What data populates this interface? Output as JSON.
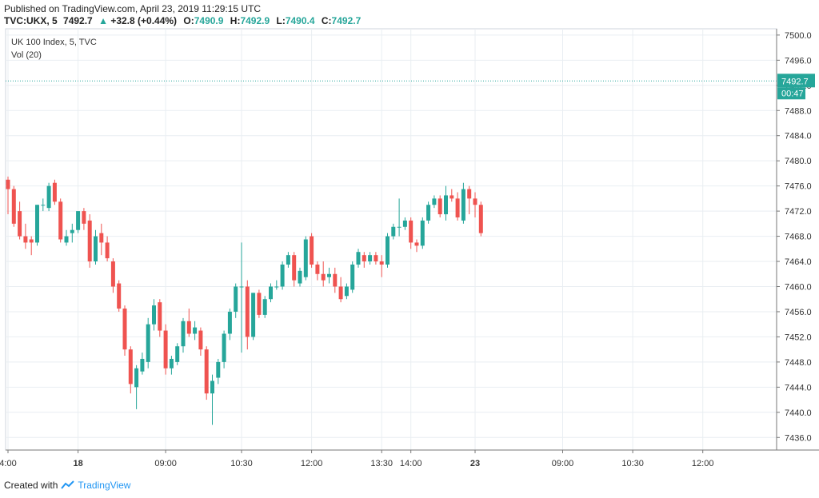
{
  "header": {
    "published": "Published on TradingView.com, April 23, 2019 11:29:15 UTC",
    "symbol": "TVC:UKX, 5",
    "last": "7492.7",
    "change": "+32.8 (+0.44%)",
    "o_label": "O:",
    "o_value": "7490.9",
    "h_label": "H:",
    "h_value": "7492.9",
    "l_label": "L:",
    "l_value": "7490.4",
    "c_label": "C:",
    "c_value": "7492.7"
  },
  "footer": {
    "created_with": "Created with",
    "brand": "TradingView"
  },
  "colors": {
    "up": "#26a69a",
    "down": "#ef5350",
    "grid": "#e9eef2",
    "axis": "#777777",
    "price_line": "#26a69a"
  },
  "chart_data": {
    "type": "candlestick",
    "title": "UK 100 Index, 5, TVC",
    "indicator": "Vol (20)",
    "ylim": [
      7434,
      7501
    ],
    "y_ticks": [
      "7500.0",
      "7496.0",
      "7492.0",
      "7488.0",
      "7484.0",
      "7480.0",
      "7476.0",
      "7472.0",
      "7468.0",
      "7464.0",
      "7460.0",
      "7456.0",
      "7452.0",
      "7448.0",
      "7444.0",
      "7440.0",
      "7436.0"
    ],
    "x_tick_labels": [
      {
        "label": "4:00",
        "bar": 0
      },
      {
        "label": "18",
        "bar": 12
      },
      {
        "label": "09:00",
        "bar": 27
      },
      {
        "label": "10:30",
        "bar": 40
      },
      {
        "label": "12:00",
        "bar": 52
      },
      {
        "label": "13:30",
        "bar": 64
      },
      {
        "label": "14:00",
        "bar": 69
      },
      {
        "label": "23",
        "bar": 80
      },
      {
        "label": "09:00",
        "bar": 95
      },
      {
        "label": "10:30",
        "bar": 107
      },
      {
        "label": "12:00",
        "bar": 119
      }
    ],
    "last_price_label": "7492.7",
    "countdown_label": "00:47",
    "last_price": 7492.7,
    "candles": [
      [
        7477.0,
        7477.5,
        7471.5,
        7475.5
      ],
      [
        7475.5,
        7476.0,
        7469.5,
        7470.0
      ],
      [
        7472.0,
        7473.5,
        7467.5,
        7468.0
      ],
      [
        7468.0,
        7470.0,
        7466.0,
        7467.0
      ],
      [
        7467.5,
        7468.0,
        7465.0,
        7467.0
      ],
      [
        7467.0,
        7473.0,
        7466.5,
        7473.0
      ],
      [
        7473.0,
        7474.0,
        7472.0,
        7473.0
      ],
      [
        7472.5,
        7476.5,
        7472.0,
        7476.0
      ],
      [
        7476.5,
        7477.0,
        7473.0,
        7473.5
      ],
      [
        7473.5,
        7474.0,
        7467.0,
        7467.5
      ],
      [
        7467.0,
        7469.0,
        7466.5,
        7468.0
      ],
      [
        7468.5,
        7470.0,
        7467.0,
        7469.0
      ],
      [
        7469.0,
        7472.0,
        7468.5,
        7472.0
      ],
      [
        7472.0,
        7472.5,
        7469.0,
        7470.0
      ],
      [
        7470.5,
        7471.5,
        7463.0,
        7464.0
      ],
      [
        7464.0,
        7469.0,
        7463.5,
        7468.0
      ],
      [
        7468.5,
        7470.0,
        7465.0,
        7467.0
      ],
      [
        7467.0,
        7468.0,
        7464.0,
        7464.5
      ],
      [
        7464.0,
        7464.5,
        7459.0,
        7460.0
      ],
      [
        7460.5,
        7461.0,
        7456.0,
        7456.5
      ],
      [
        7456.5,
        7457.0,
        7449.0,
        7450.0
      ],
      [
        7450.0,
        7450.5,
        7443.0,
        7444.5
      ],
      [
        7444.0,
        7447.5,
        7440.5,
        7447.0
      ],
      [
        7446.5,
        7449.5,
        7446.0,
        7448.5
      ],
      [
        7448.0,
        7455.0,
        7447.0,
        7454.0
      ],
      [
        7454.0,
        7458.0,
        7453.0,
        7457.0
      ],
      [
        7457.5,
        7458.0,
        7452.0,
        7453.0
      ],
      [
        7453.0,
        7454.0,
        7446.0,
        7447.0
      ],
      [
        7447.0,
        7449.0,
        7446.0,
        7448.5
      ],
      [
        7448.0,
        7451.0,
        7447.5,
        7450.5
      ],
      [
        7450.5,
        7455.0,
        7449.5,
        7454.5
      ],
      [
        7454.5,
        7456.5,
        7452.0,
        7452.5
      ],
      [
        7452.5,
        7454.5,
        7451.5,
        7453.5
      ],
      [
        7453.0,
        7453.5,
        7449.0,
        7450.0
      ],
      [
        7450.0,
        7450.5,
        7442.0,
        7443.0
      ],
      [
        7443.0,
        7446.0,
        7438.0,
        7445.0
      ],
      [
        7445.5,
        7448.5,
        7444.5,
        7448.0
      ],
      [
        7448.0,
        7453.0,
        7447.0,
        7452.5
      ],
      [
        7452.5,
        7456.5,
        7451.5,
        7456.0
      ],
      [
        7456.0,
        7460.5,
        7455.0,
        7460.0
      ],
      [
        7460.0,
        7467.0,
        7449.5,
        7460.0
      ],
      [
        7460.0,
        7461.0,
        7450.0,
        7452.0
      ],
      [
        7452.0,
        7459.0,
        7451.5,
        7459.0
      ],
      [
        7459.0,
        7459.5,
        7455.0,
        7455.5
      ],
      [
        7455.5,
        7458.5,
        7455.0,
        7458.0
      ],
      [
        7458.0,
        7460.5,
        7457.5,
        7460.0
      ],
      [
        7460.0,
        7461.0,
        7459.5,
        7460.0
      ],
      [
        7460.0,
        7464.0,
        7459.5,
        7463.5
      ],
      [
        7463.5,
        7465.5,
        7463.0,
        7465.0
      ],
      [
        7465.0,
        7465.5,
        7460.0,
        7461.0
      ],
      [
        7460.5,
        7463.0,
        7460.0,
        7462.5
      ],
      [
        7461.5,
        7468.0,
        7461.0,
        7467.5
      ],
      [
        7468.0,
        7468.5,
        7463.0,
        7463.5
      ],
      [
        7463.5,
        7464.0,
        7461.0,
        7462.0
      ],
      [
        7462.0,
        7464.0,
        7460.0,
        7461.0
      ],
      [
        7461.5,
        7463.0,
        7460.5,
        7462.0
      ],
      [
        7462.0,
        7463.0,
        7459.0,
        7460.0
      ],
      [
        7460.0,
        7461.5,
        7457.5,
        7458.0
      ],
      [
        7458.5,
        7460.5,
        7458.0,
        7460.0
      ],
      [
        7459.5,
        7464.0,
        7459.0,
        7463.5
      ],
      [
        7463.5,
        7466.0,
        7463.0,
        7465.5
      ],
      [
        7465.0,
        7465.5,
        7463.0,
        7464.0
      ],
      [
        7464.0,
        7465.5,
        7463.5,
        7465.0
      ],
      [
        7465.0,
        7465.5,
        7463.5,
        7464.0
      ],
      [
        7464.0,
        7465.0,
        7461.5,
        7463.5
      ],
      [
        7463.5,
        7468.5,
        7463.0,
        7468.0
      ],
      [
        7468.0,
        7470.0,
        7467.5,
        7469.5
      ],
      [
        7469.5,
        7474.0,
        7468.0,
        7469.5
      ],
      [
        7469.5,
        7471.0,
        7469.0,
        7470.5
      ],
      [
        7470.5,
        7471.0,
        7466.0,
        7467.0
      ],
      [
        7467.0,
        7467.5,
        7465.5,
        7466.5
      ],
      [
        7466.5,
        7471.0,
        7466.0,
        7470.5
      ],
      [
        7470.5,
        7473.5,
        7470.0,
        7473.0
      ],
      [
        7473.0,
        7474.5,
        7472.5,
        7474.0
      ],
      [
        7474.0,
        7474.5,
        7471.0,
        7471.5
      ],
      [
        7471.5,
        7476.0,
        7470.5,
        7474.5
      ],
      [
        7474.5,
        7475.5,
        7473.5,
        7474.0
      ],
      [
        7474.0,
        7475.0,
        7470.5,
        7471.0
      ],
      [
        7470.5,
        7476.5,
        7470.0,
        7475.5
      ],
      [
        7475.5,
        7476.0,
        7471.5,
        7474.0
      ],
      [
        7474.0,
        7475.0,
        7471.0,
        7473.0
      ],
      [
        7473.0,
        7473.5,
        7468.0,
        7468.5
      ]
    ]
  }
}
